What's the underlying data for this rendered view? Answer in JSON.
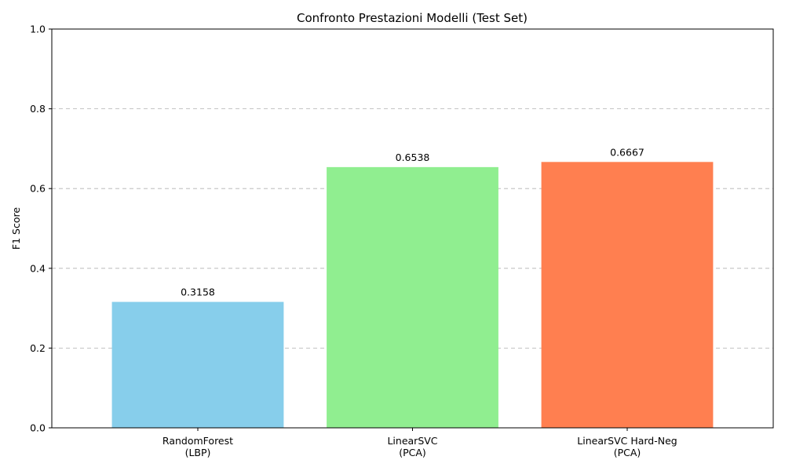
{
  "chart_data": {
    "type": "bar",
    "title": "Confronto Prestazioni Modelli (Test Set)",
    "xlabel": "",
    "ylabel": "F1 Score",
    "categories": [
      [
        "RandomForest",
        "(LBP)"
      ],
      [
        "LinearSVC",
        "(PCA)"
      ],
      [
        "LinearSVC Hard-Neg",
        "(PCA)"
      ]
    ],
    "values": [
      0.3158,
      0.6538,
      0.6667
    ],
    "value_labels": [
      "0.3158",
      "0.6538",
      "0.6667"
    ],
    "colors": [
      "#87CEEB",
      "#90EE90",
      "#FF7F50"
    ],
    "ylim": [
      0,
      1.0
    ],
    "yticks": [
      0.0,
      0.2,
      0.4,
      0.6,
      0.8,
      1.0
    ],
    "ytick_labels": [
      "0.0",
      "0.2",
      "0.4",
      "0.6",
      "0.8",
      "1.0"
    ],
    "grid": "y-dashed"
  }
}
